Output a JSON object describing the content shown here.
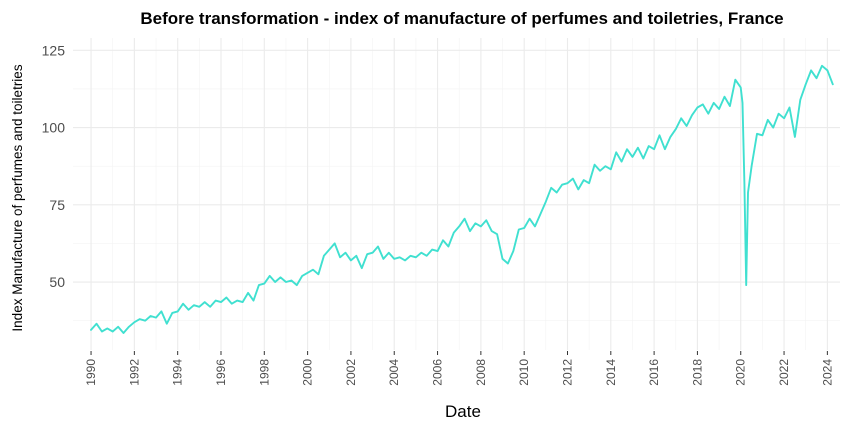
{
  "chart_data": {
    "type": "line",
    "title": "Before transformation - index of manufacture of perfumes and toiletries, France",
    "xlabel": "Date",
    "ylabel": "Index Manufacture of perfumes and toiletries",
    "x_range": [
      "1989-03",
      "2024-08"
    ],
    "ylim": [
      28,
      129
    ],
    "y_ticks": [
      50,
      75,
      100,
      125
    ],
    "x_ticks": [
      "1990",
      "1992",
      "1994",
      "1996",
      "1998",
      "2000",
      "2002",
      "2004",
      "2006",
      "2008",
      "2010",
      "2012",
      "2014",
      "2016",
      "2018",
      "2020",
      "2022",
      "2024"
    ],
    "grid": true,
    "legend": "none",
    "series": [
      {
        "color": "#40e0d0",
        "points": [
          [
            "1990-01",
            34.5
          ],
          [
            "1990-04",
            36.5
          ],
          [
            "1990-07",
            34.0
          ],
          [
            "1990-10",
            35.0
          ],
          [
            "1991-01",
            34.0
          ],
          [
            "1991-04",
            35.5
          ],
          [
            "1991-07",
            33.5
          ],
          [
            "1991-10",
            35.5
          ],
          [
            "1992-01",
            37.0
          ],
          [
            "1992-04",
            38.0
          ],
          [
            "1992-07",
            37.5
          ],
          [
            "1992-10",
            39.0
          ],
          [
            "1993-01",
            38.5
          ],
          [
            "1993-04",
            40.5
          ],
          [
            "1993-07",
            36.5
          ],
          [
            "1993-10",
            40.0
          ],
          [
            "1994-01",
            40.5
          ],
          [
            "1994-04",
            43.0
          ],
          [
            "1994-07",
            41.0
          ],
          [
            "1994-10",
            42.5
          ],
          [
            "1995-01",
            42.0
          ],
          [
            "1995-04",
            43.5
          ],
          [
            "1995-07",
            42.0
          ],
          [
            "1995-10",
            44.0
          ],
          [
            "1996-01",
            43.5
          ],
          [
            "1996-04",
            45.0
          ],
          [
            "1996-07",
            43.0
          ],
          [
            "1996-10",
            44.0
          ],
          [
            "1997-01",
            43.5
          ],
          [
            "1997-04",
            46.5
          ],
          [
            "1997-07",
            44.0
          ],
          [
            "1997-10",
            49.0
          ],
          [
            "1998-01",
            49.5
          ],
          [
            "1998-04",
            52.0
          ],
          [
            "1998-07",
            50.0
          ],
          [
            "1998-10",
            51.5
          ],
          [
            "1999-01",
            50.0
          ],
          [
            "1999-04",
            50.5
          ],
          [
            "1999-07",
            49.0
          ],
          [
            "1999-10",
            52.0
          ],
          [
            "2000-01",
            53.0
          ],
          [
            "2000-04",
            54.0
          ],
          [
            "2000-07",
            52.5
          ],
          [
            "2000-10",
            58.5
          ],
          [
            "2001-01",
            60.5
          ],
          [
            "2001-04",
            62.5
          ],
          [
            "2001-07",
            58.0
          ],
          [
            "2001-10",
            59.5
          ],
          [
            "2002-01",
            57.0
          ],
          [
            "2002-04",
            58.5
          ],
          [
            "2002-07",
            54.5
          ],
          [
            "2002-10",
            59.0
          ],
          [
            "2003-01",
            59.5
          ],
          [
            "2003-04",
            61.5
          ],
          [
            "2003-07",
            57.5
          ],
          [
            "2003-10",
            59.5
          ],
          [
            "2004-01",
            57.5
          ],
          [
            "2004-04",
            58.0
          ],
          [
            "2004-07",
            57.0
          ],
          [
            "2004-10",
            58.5
          ],
          [
            "2005-01",
            58.0
          ],
          [
            "2005-04",
            59.5
          ],
          [
            "2005-07",
            58.5
          ],
          [
            "2005-10",
            60.5
          ],
          [
            "2006-01",
            60.0
          ],
          [
            "2006-04",
            63.5
          ],
          [
            "2006-07",
            61.5
          ],
          [
            "2006-10",
            66.0
          ],
          [
            "2007-01",
            68.0
          ],
          [
            "2007-04",
            70.5
          ],
          [
            "2007-07",
            66.5
          ],
          [
            "2007-10",
            69.0
          ],
          [
            "2008-01",
            68.0
          ],
          [
            "2008-04",
            70.0
          ],
          [
            "2008-07",
            66.5
          ],
          [
            "2008-10",
            65.5
          ],
          [
            "2009-01",
            57.5
          ],
          [
            "2009-04",
            56.0
          ],
          [
            "2009-07",
            60.0
          ],
          [
            "2009-10",
            67.0
          ],
          [
            "2010-01",
            67.5
          ],
          [
            "2010-04",
            70.5
          ],
          [
            "2010-07",
            68.0
          ],
          [
            "2010-10",
            72.0
          ],
          [
            "2011-01",
            76.0
          ],
          [
            "2011-04",
            80.5
          ],
          [
            "2011-07",
            79.0
          ],
          [
            "2011-10",
            81.5
          ],
          [
            "2012-01",
            82.0
          ],
          [
            "2012-04",
            83.5
          ],
          [
            "2012-07",
            80.0
          ],
          [
            "2012-10",
            83.0
          ],
          [
            "2013-01",
            82.0
          ],
          [
            "2013-04",
            88.0
          ],
          [
            "2013-07",
            86.0
          ],
          [
            "2013-10",
            87.5
          ],
          [
            "2014-01",
            86.5
          ],
          [
            "2014-04",
            92.0
          ],
          [
            "2014-07",
            89.0
          ],
          [
            "2014-10",
            93.0
          ],
          [
            "2015-01",
            90.5
          ],
          [
            "2015-04",
            93.5
          ],
          [
            "2015-07",
            90.0
          ],
          [
            "2015-10",
            94.0
          ],
          [
            "2016-01",
            93.0
          ],
          [
            "2016-04",
            97.5
          ],
          [
            "2016-07",
            93.0
          ],
          [
            "2016-10",
            97.0
          ],
          [
            "2017-01",
            99.5
          ],
          [
            "2017-04",
            103.0
          ],
          [
            "2017-07",
            100.5
          ],
          [
            "2017-10",
            104.0
          ],
          [
            "2018-01",
            106.5
          ],
          [
            "2018-04",
            107.5
          ],
          [
            "2018-07",
            104.5
          ],
          [
            "2018-10",
            108.0
          ],
          [
            "2019-01",
            106.0
          ],
          [
            "2019-04",
            110.0
          ],
          [
            "2019-07",
            107.0
          ],
          [
            "2019-10",
            115.5
          ],
          [
            "2020-01",
            113.0
          ],
          [
            "2020-02",
            108.0
          ],
          [
            "2020-03",
            82.0
          ],
          [
            "2020-04",
            49.0
          ],
          [
            "2020-05",
            79.0
          ],
          [
            "2020-07",
            87.5
          ],
          [
            "2020-10",
            98.0
          ],
          [
            "2021-01",
            97.5
          ],
          [
            "2021-04",
            102.5
          ],
          [
            "2021-07",
            100.0
          ],
          [
            "2021-10",
            104.5
          ],
          [
            "2022-01",
            103.0
          ],
          [
            "2022-04",
            106.5
          ],
          [
            "2022-07",
            97.0
          ],
          [
            "2022-10",
            109.0
          ],
          [
            "2023-01",
            114.0
          ],
          [
            "2023-04",
            118.5
          ],
          [
            "2023-07",
            116.0
          ],
          [
            "2023-10",
            120.0
          ],
          [
            "2024-01",
            118.5
          ],
          [
            "2024-04",
            114.0
          ]
        ]
      }
    ]
  }
}
